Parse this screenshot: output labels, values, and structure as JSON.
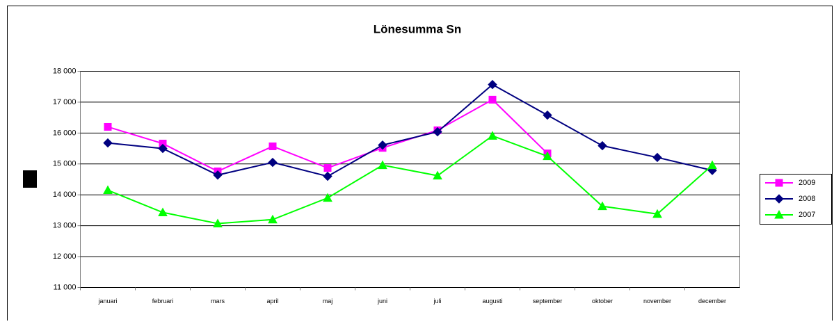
{
  "chart_data": {
    "type": "line",
    "title": "Lönesumma Sn",
    "categories": [
      "januari",
      "februari",
      "mars",
      "april",
      "maj",
      "juni",
      "juli",
      "augusti",
      "september",
      "oktober",
      "november",
      "december"
    ],
    "series": [
      {
        "name": "2009",
        "color": "#ff00ff",
        "marker": "square",
        "values": [
          16200,
          15660,
          14760,
          15570,
          14870,
          15520,
          16090,
          17080,
          15340,
          null,
          null,
          null
        ]
      },
      {
        "name": "2008",
        "color": "#000080",
        "marker": "diamond",
        "values": [
          15680,
          15500,
          14640,
          15050,
          14600,
          15610,
          16040,
          17570,
          16580,
          15590,
          15210,
          14790
        ]
      },
      {
        "name": "2007",
        "color": "#00ff00",
        "marker": "triangle",
        "values": [
          14150,
          13430,
          13070,
          13200,
          13900,
          14960,
          14620,
          15910,
          15250,
          13630,
          13380,
          14960
        ]
      }
    ],
    "ylim": [
      11000,
      18000
    ],
    "yticks": [
      {
        "value": 11000,
        "label": "11 000"
      },
      {
        "value": 12000,
        "label": "12 000"
      },
      {
        "value": 13000,
        "label": "13 000"
      },
      {
        "value": 14000,
        "label": "14 000"
      },
      {
        "value": 15000,
        "label": "15 000"
      },
      {
        "value": 16000,
        "label": "16 000"
      },
      {
        "value": 17000,
        "label": "17 000"
      },
      {
        "value": 18000,
        "label": "18 000"
      }
    ],
    "grid": true,
    "legend": "right"
  }
}
